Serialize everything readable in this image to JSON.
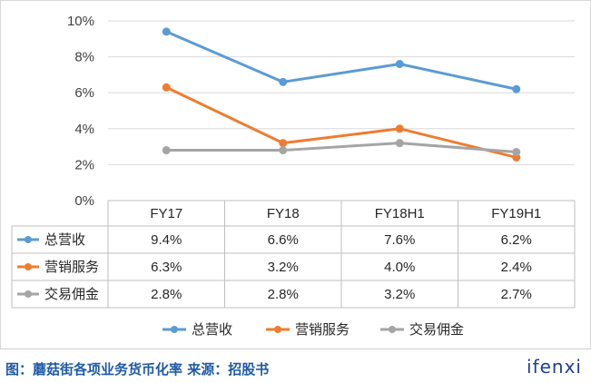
{
  "chart_data": {
    "type": "line",
    "categories": [
      "FY17",
      "FY18",
      "FY18H1",
      "FY19H1"
    ],
    "y_ticks": [
      "0%",
      "2%",
      "4%",
      "6%",
      "8%",
      "10%"
    ],
    "ylim": [
      0,
      10
    ],
    "grid": "horizontal",
    "legend_position": "bottom",
    "series": [
      {
        "name": "总营收",
        "color": "#5b9bd5",
        "values": [
          9.4,
          6.6,
          7.6,
          6.2
        ],
        "labels": [
          "9.4%",
          "6.6%",
          "7.6%",
          "6.2%"
        ]
      },
      {
        "name": "营销服务",
        "color": "#ed7d31",
        "values": [
          6.3,
          3.2,
          4.0,
          2.4
        ],
        "labels": [
          "6.3%",
          "3.2%",
          "4.0%",
          "2.4%"
        ]
      },
      {
        "name": "交易佣金",
        "color": "#a5a5a5",
        "values": [
          2.8,
          2.8,
          3.2,
          2.7
        ],
        "labels": [
          "2.8%",
          "2.8%",
          "3.2%",
          "2.7%"
        ]
      }
    ]
  },
  "caption": "图：蘑菇街各项业务货币化率 来源：招股书",
  "brand": "ifenxi"
}
